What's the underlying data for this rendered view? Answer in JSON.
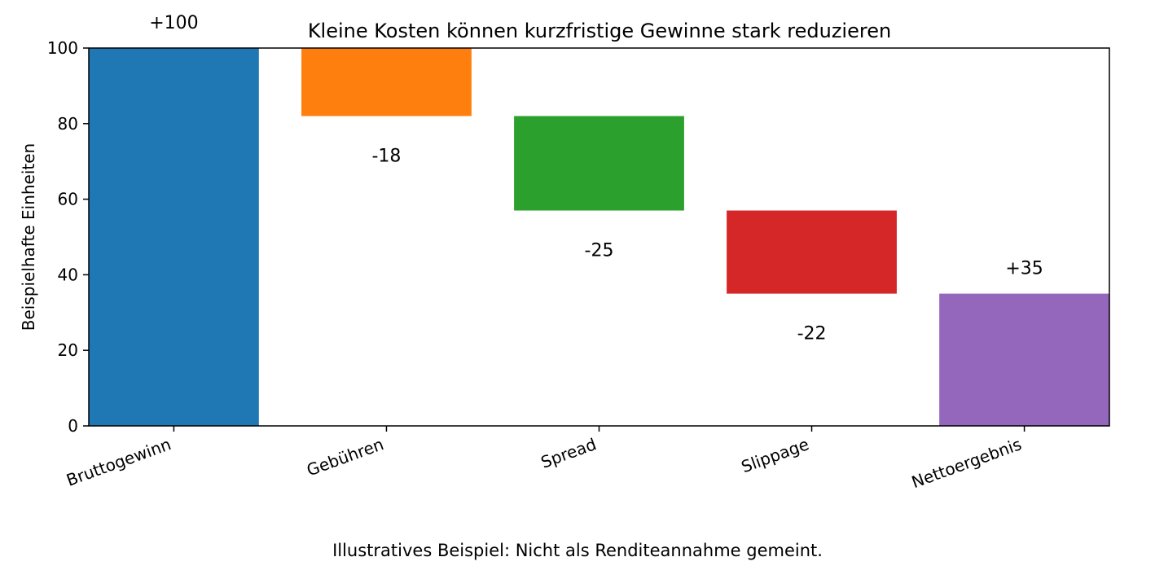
{
  "chart_data": {
    "type": "bar",
    "subtype": "waterfall",
    "title": "Kleine Kosten können kurzfristige Gewinne stark reduzieren",
    "xlabel": "",
    "ylabel": "Beispielhafte Einheiten",
    "ylim": [
      0,
      100
    ],
    "yticks": [
      0,
      20,
      40,
      60,
      80,
      100
    ],
    "grid": false,
    "categories": [
      "Bruttogewinn",
      "Gebühren",
      "Spread",
      "Slippage",
      "Nettoergebnis"
    ],
    "values": [
      100,
      -18,
      -25,
      -22,
      35
    ],
    "bar_bottoms": [
      0,
      82,
      57,
      35,
      0
    ],
    "bar_tops": [
      100,
      100,
      82,
      57,
      35
    ],
    "data_labels": [
      "+100",
      "-18",
      "-25",
      "-22",
      "+35"
    ],
    "colors": [
      "#1f77b4",
      "#ff7f0e",
      "#2ca02c",
      "#d62728",
      "#9467bd"
    ]
  },
  "caption": "Illustratives Beispiel: Nicht als Renditeannahme gemeint."
}
